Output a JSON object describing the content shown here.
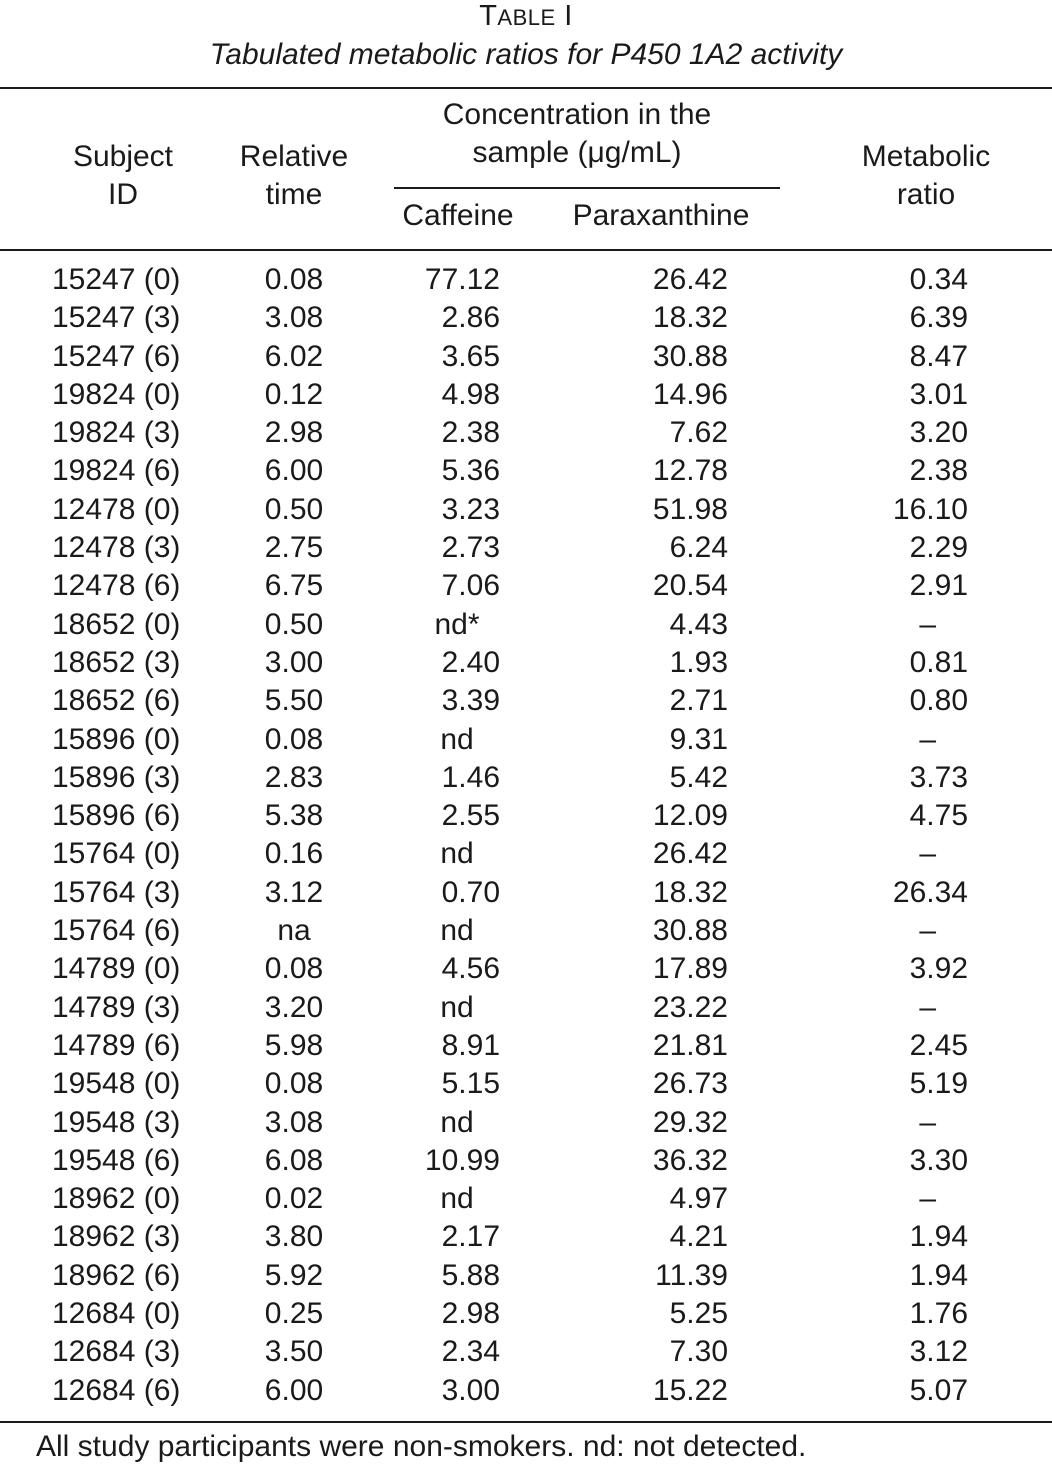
{
  "table": {
    "label_first": "T",
    "label_rest": "ABLE",
    "label_num": " I",
    "caption": "Tabulated metabolic ratios for P450 1A2 activity",
    "headers": {
      "subject_line1": "Subject",
      "subject_line2": "ID",
      "time_line1": "Relative",
      "time_line2": "time",
      "conc_line1": "Concentration in the",
      "conc_line2": "sample (μg/mL)",
      "caffeine": "Caffeine",
      "paraxanthine": "Paraxanthine",
      "ratio_line1": "Metabolic",
      "ratio_line2": "ratio"
    },
    "rows": [
      [
        "15247 (0)",
        "0.08",
        "77.12",
        "26.42",
        "0.34"
      ],
      [
        "15247 (3)",
        "3.08",
        "2.86",
        "18.32",
        "6.39"
      ],
      [
        "15247 (6)",
        "6.02",
        "3.65",
        "30.88",
        "8.47"
      ],
      [
        "19824 (0)",
        "0.12",
        "4.98",
        "14.96",
        "3.01"
      ],
      [
        "19824 (3)",
        "2.98",
        "2.38",
        "7.62",
        "3.20"
      ],
      [
        "19824 (6)",
        "6.00",
        "5.36",
        "12.78",
        "2.38"
      ],
      [
        "12478 (0)",
        "0.50",
        "3.23",
        "51.98",
        "16.10"
      ],
      [
        "12478 (3)",
        "2.75",
        "2.73",
        "6.24",
        "2.29"
      ],
      [
        "12478 (6)",
        "6.75",
        "7.06",
        "20.54",
        "2.91"
      ],
      [
        "18652 (0)",
        "0.50",
        "nd*",
        "4.43",
        "–"
      ],
      [
        "18652 (3)",
        "3.00",
        "2.40",
        "1.93",
        "0.81"
      ],
      [
        "18652 (6)",
        "5.50",
        "3.39",
        "2.71",
        "0.80"
      ],
      [
        "15896 (0)",
        "0.08",
        "nd",
        "9.31",
        "–"
      ],
      [
        "15896 (3)",
        "2.83",
        "1.46",
        "5.42",
        "3.73"
      ],
      [
        "15896 (6)",
        "5.38",
        "2.55",
        "12.09",
        "4.75"
      ],
      [
        "15764 (0)",
        "0.16",
        "nd",
        "26.42",
        "–"
      ],
      [
        "15764 (3)",
        "3.12",
        "0.70",
        "18.32",
        "26.34"
      ],
      [
        "15764 (6)",
        "na",
        "nd",
        "30.88",
        "–"
      ],
      [
        "14789 (0)",
        "0.08",
        "4.56",
        "17.89",
        "3.92"
      ],
      [
        "14789 (3)",
        "3.20",
        "nd",
        "23.22",
        "–"
      ],
      [
        "14789 (6)",
        "5.98",
        "8.91",
        "21.81",
        "2.45"
      ],
      [
        "19548 (0)",
        "0.08",
        "5.15",
        "26.73",
        "5.19"
      ],
      [
        "19548 (3)",
        "3.08",
        "nd",
        "29.32",
        "–"
      ],
      [
        "19548 (6)",
        "6.08",
        "10.99",
        "36.32",
        "3.30"
      ],
      [
        "18962 (0)",
        "0.02",
        "nd",
        "4.97",
        "–"
      ],
      [
        "18962 (3)",
        "3.80",
        "2.17",
        "4.21",
        "1.94"
      ],
      [
        "18962 (6)",
        "5.92",
        "5.88",
        "11.39",
        "1.94"
      ],
      [
        "12684 (0)",
        "0.25",
        "2.98",
        "5.25",
        "1.76"
      ],
      [
        "12684 (3)",
        "3.50",
        "2.34",
        "7.30",
        "3.12"
      ],
      [
        "12684 (6)",
        "6.00",
        "3.00",
        "15.22",
        "5.07"
      ]
    ],
    "footnote": "All study participants were non-smokers. nd: not detected."
  }
}
